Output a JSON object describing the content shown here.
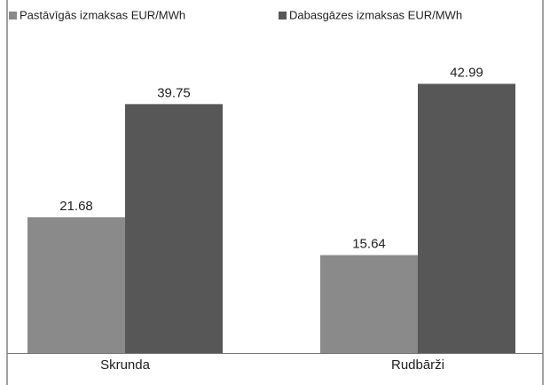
{
  "chart_data": {
    "type": "bar",
    "categories": [
      "Skrunda",
      "Rudbārži"
    ],
    "series": [
      {
        "name": "Pastāvīgās izmaksas EUR/MWh",
        "color": "#8a8a8a",
        "values": [
          21.68,
          15.64
        ]
      },
      {
        "name": "Dabasgāzes izmaksas EUR/MWh",
        "color": "#575757",
        "values": [
          39.75,
          42.99
        ]
      }
    ],
    "ylim": [
      0,
      50
    ]
  }
}
